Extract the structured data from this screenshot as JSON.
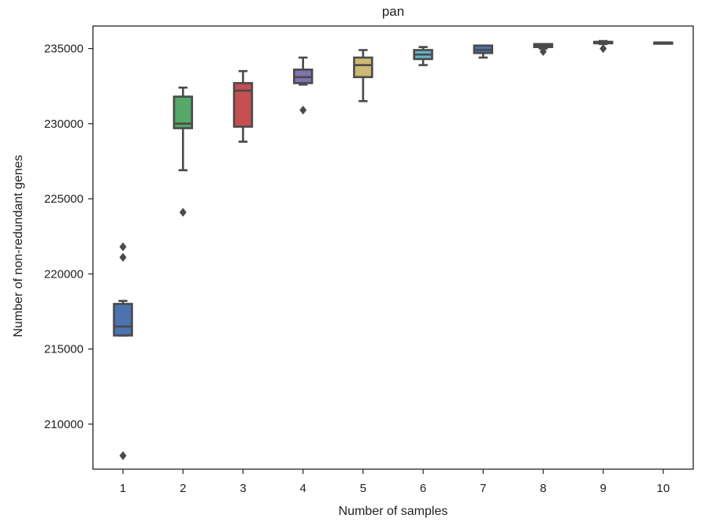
{
  "chart_data": {
    "type": "box",
    "title": "pan",
    "xlabel": "Number of samples",
    "ylabel": "Number of non-redundant genes",
    "ylim": [
      207000,
      236500
    ],
    "yticks": [
      210000,
      215000,
      220000,
      225000,
      230000,
      235000
    ],
    "ytick_labels": [
      "210000",
      "215000",
      "220000",
      "225000",
      "230000",
      "235000"
    ],
    "categories": [
      "1",
      "2",
      "3",
      "4",
      "5",
      "6",
      "7",
      "8",
      "9",
      "10"
    ],
    "grid": false,
    "boxes": [
      {
        "category": "1",
        "whisker_low": 215900,
        "q1": 215900,
        "median": 216500,
        "q3": 218000,
        "whisker_high": 218200,
        "fliers": [
          221800,
          221100,
          207900
        ],
        "color": "#4c72b0"
      },
      {
        "category": "2",
        "whisker_low": 226900,
        "q1": 229700,
        "median": 230000,
        "q3": 231800,
        "whisker_high": 232400,
        "fliers": [
          224100
        ],
        "color": "#55a868"
      },
      {
        "category": "3",
        "whisker_low": 228800,
        "q1": 229800,
        "median": 232200,
        "q3": 232700,
        "whisker_high": 233500,
        "fliers": [],
        "color": "#c44e52"
      },
      {
        "category": "4",
        "whisker_low": 232600,
        "q1": 232700,
        "median": 233100,
        "q3": 233600,
        "whisker_high": 234400,
        "fliers": [
          230900
        ],
        "color": "#8172b2"
      },
      {
        "category": "5",
        "whisker_low": 231500,
        "q1": 233100,
        "median": 233900,
        "q3": 234400,
        "whisker_high": 234900,
        "fliers": [],
        "color": "#ccb974"
      },
      {
        "category": "6",
        "whisker_low": 233900,
        "q1": 234300,
        "median": 234600,
        "q3": 234900,
        "whisker_high": 235100,
        "fliers": [],
        "color": "#64b5cd"
      },
      {
        "category": "7",
        "whisker_low": 234400,
        "q1": 234700,
        "median": 234900,
        "q3": 235200,
        "whisker_high": 235200,
        "fliers": [],
        "color": "#4c72b0"
      },
      {
        "category": "8",
        "whisker_low": 235000,
        "q1": 235100,
        "median": 235200,
        "q3": 235300,
        "whisker_high": 235300,
        "fliers": [
          234800
        ],
        "color": "#55a868"
      },
      {
        "category": "9",
        "whisker_low": 235300,
        "q1": 235350,
        "median": 235400,
        "q3": 235450,
        "whisker_high": 235500,
        "fliers": [
          235000
        ],
        "color": "#c44e52"
      },
      {
        "category": "10",
        "whisker_low": 235400,
        "q1": 235400,
        "median": 235400,
        "q3": 235400,
        "whisker_high": 235400,
        "fliers": [],
        "color": "#8172b2"
      }
    ],
    "line_color": "#4a4a4a"
  }
}
